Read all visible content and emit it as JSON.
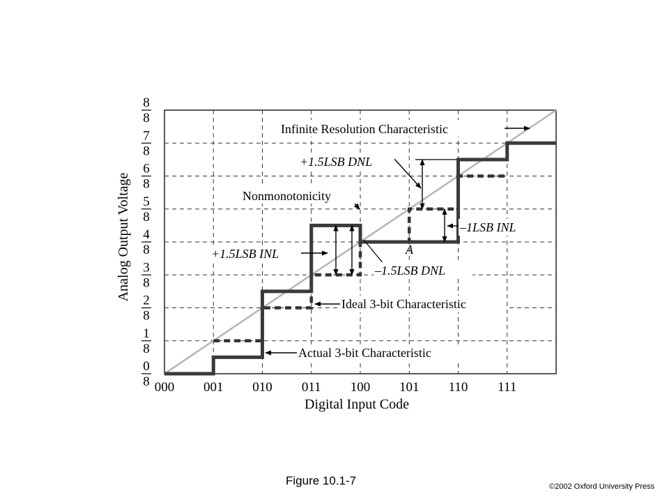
{
  "chart_data": {
    "type": "line",
    "xlabel": "Digital Input Code",
    "ylabel": "Analog Output Voltage",
    "x_ticks": [
      "000",
      "001",
      "010",
      "011",
      "100",
      "101",
      "110",
      "111"
    ],
    "y_ticks": [
      {
        "num": "0",
        "den": "8"
      },
      {
        "num": "1",
        "den": "8"
      },
      {
        "num": "2",
        "den": "8"
      },
      {
        "num": "3",
        "den": "8"
      },
      {
        "num": "4",
        "den": "8"
      },
      {
        "num": "5",
        "den": "8"
      },
      {
        "num": "6",
        "den": "8"
      },
      {
        "num": "7",
        "den": "8"
      },
      {
        "num": "8",
        "den": "8"
      }
    ],
    "xlim": [
      0,
      8
    ],
    "ylim": [
      0,
      8
    ],
    "grid": true,
    "series": [
      {
        "name": "Actual 3-bit Characteristic",
        "style": "solid-thick",
        "x": [
          0,
          1,
          1,
          2,
          2,
          3,
          3,
          4,
          4,
          6,
          6,
          7,
          7,
          8
        ],
        "y": [
          0,
          0,
          0.5,
          0.5,
          2.5,
          2.5,
          4.5,
          4.5,
          4,
          4,
          6.5,
          6.5,
          7,
          7
        ]
      },
      {
        "name": "Ideal 3-bit Characteristic",
        "style": "dashed-thick",
        "x": [
          1,
          2,
          2,
          3,
          3,
          4,
          4,
          5,
          5,
          6,
          6,
          7
        ],
        "y": [
          1,
          1,
          2,
          2,
          3,
          3,
          4,
          4,
          5,
          5,
          6,
          6
        ]
      },
      {
        "name": "Infinite Resolution Characteristic",
        "style": "solid-gray",
        "x": [
          0,
          8
        ],
        "y": [
          0,
          8
        ]
      }
    ],
    "annotations": {
      "infinite": "Infinite Resolution Characteristic",
      "dnl_plus": "+1.5LSB DNL",
      "nonmono": "Nonmonotonicity",
      "inl_minus": "–1LSB INL",
      "inl_plus": "+1.5LSB INL",
      "point_a": "A",
      "dnl_minus": "–1.5LSB DNL",
      "ideal": "Ideal 3-bit Characteristic",
      "actual": "Actual 3-bit Characteristic"
    }
  },
  "caption": "Figure 10.1-7",
  "copyright": "©2002 Oxford University Press"
}
